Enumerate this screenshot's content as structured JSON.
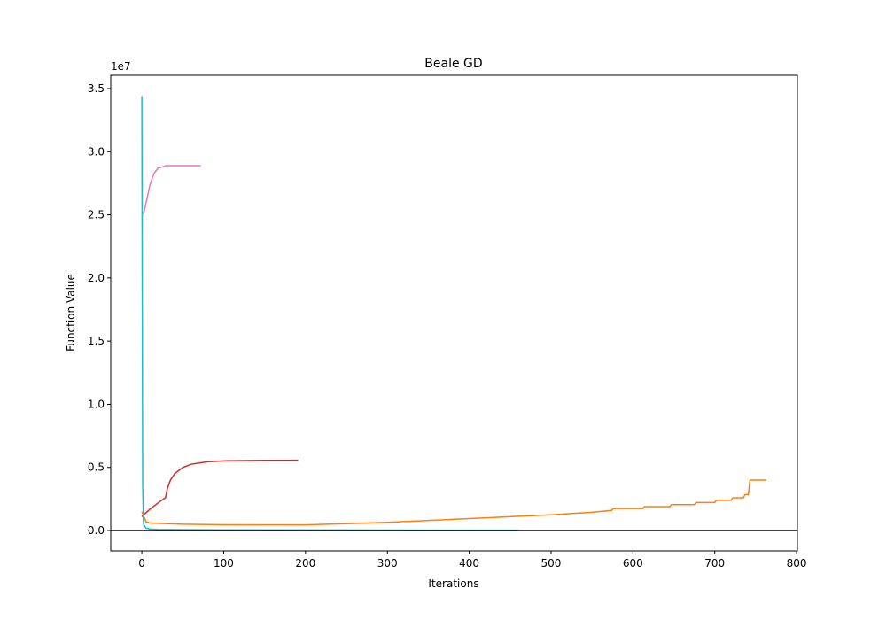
{
  "chart_data": {
    "type": "line",
    "title": "Beale GD",
    "xlabel": "Iterations",
    "ylabel": "Function Value",
    "y_offset_label": "1e7",
    "xlim": [
      -38,
      801
    ],
    "ylim": [
      -0.161,
      3.605
    ],
    "xticks": [
      0,
      100,
      200,
      300,
      400,
      500,
      600,
      700,
      800
    ],
    "yticks": [
      {
        "value": 0,
        "label": "0.0"
      },
      0.5,
      {
        "value": 1,
        "label": "1.0"
      },
      1.5,
      {
        "value": 2,
        "label": "2.0"
      },
      2.5,
      {
        "value": 3,
        "label": "3.0"
      },
      3.5
    ],
    "hline": 0,
    "hline_color": "#000000",
    "series": [
      {
        "color": "#ff7f0e",
        "x": [
          0,
          5,
          10,
          50,
          100,
          200,
          250,
          300,
          350,
          400,
          450,
          500,
          550,
          574,
          576,
          612,
          614,
          645,
          647,
          675,
          677,
          700,
          702,
          720,
          722,
          735,
          737,
          741,
          743,
          763
        ],
        "values": [
          0.15,
          0.07,
          0.06,
          0.05,
          0.046,
          0.045,
          0.055,
          0.065,
          0.08,
          0.095,
          0.11,
          0.125,
          0.145,
          0.16,
          0.175,
          0.175,
          0.19,
          0.19,
          0.205,
          0.205,
          0.222,
          0.222,
          0.24,
          0.24,
          0.26,
          0.26,
          0.285,
          0.285,
          0.4,
          0.4
        ]
      },
      {
        "color": "#d62728",
        "x": [
          0,
          10,
          20,
          29,
          31,
          35,
          40,
          50,
          60,
          80,
          100,
          150,
          191
        ],
        "values": [
          0.11,
          0.17,
          0.22,
          0.262,
          0.33,
          0.4,
          0.45,
          0.5,
          0.525,
          0.545,
          0.552,
          0.556,
          0.557
        ]
      },
      {
        "color": "#e377c2",
        "x": [
          0,
          3,
          6,
          10,
          15,
          20,
          30,
          50,
          72
        ],
        "values": [
          2.5,
          2.53,
          2.62,
          2.74,
          2.83,
          2.87,
          2.89,
          2.89,
          2.89
        ]
      },
      {
        "color": "#17becf",
        "x": [
          0,
          1,
          2,
          5,
          10,
          20,
          50,
          100,
          200,
          300,
          400,
          460
        ],
        "values": [
          3.44,
          0.37,
          0.05,
          0.02,
          0.012,
          0.009,
          0.007,
          0.006,
          0.005,
          0.004,
          0.003,
          0.003
        ]
      }
    ]
  }
}
